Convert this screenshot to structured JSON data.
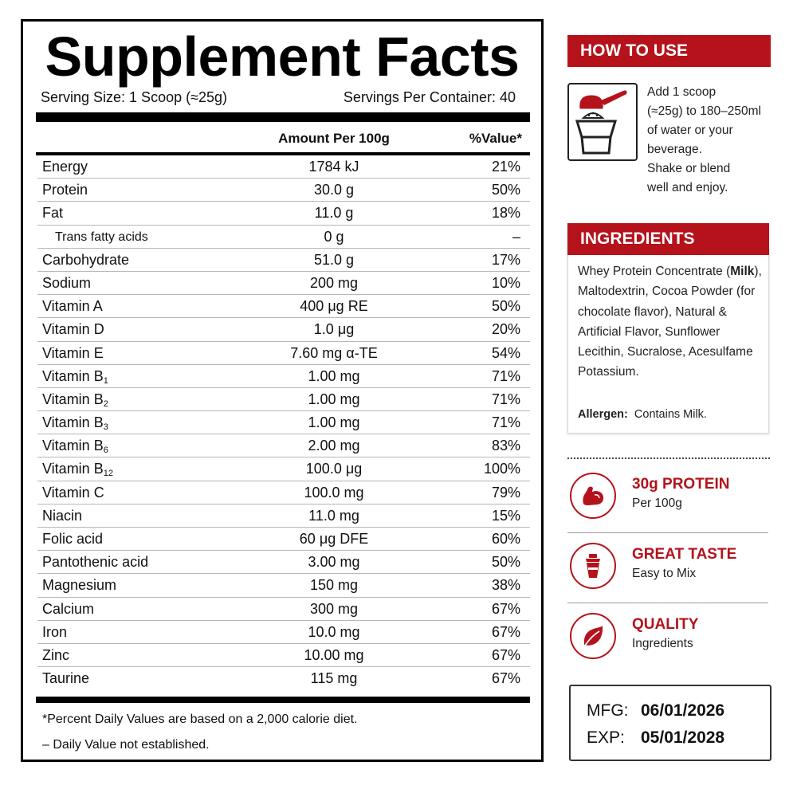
{
  "facts": {
    "title": "Supplement Facts",
    "serving_size": "Serving Size: 1 Scoop (≈25g)",
    "servings_per_container": "Servings Per Container: 40",
    "col_amount": "Amount Per 100g",
    "col_value": "%Value*",
    "rows": [
      {
        "name": "Energy",
        "amount": "1784 kJ",
        "value": "21%"
      },
      {
        "name": "Protein",
        "amount": "30.0 g",
        "value": "50%"
      },
      {
        "name": "Fat",
        "amount": "11.0 g",
        "value": "18%"
      },
      {
        "name": "Trans fatty acids",
        "amount": "0 g",
        "value": "–"
      },
      {
        "name": "Carbohydrate",
        "amount": "51.0 g",
        "value": "17%"
      },
      {
        "name": "Sodium",
        "amount": "200 mg",
        "value": "10%"
      },
      {
        "name": "Vitamin A",
        "amount": "400 μg RE",
        "value": "50%"
      },
      {
        "name": "Vitamin D",
        "amount": "1.0 μg",
        "value": "20%"
      },
      {
        "name": "Vitamin E",
        "amount": "7.60 mg α-TE",
        "value": "54%"
      },
      {
        "name": "Vitamin B",
        "sub": "1",
        "amount": "1.00 mg",
        "value": "71%"
      },
      {
        "name": "Vitamin B",
        "sub": "2",
        "amount": "1.00 mg",
        "value": "71%"
      },
      {
        "name": "Vitamin B",
        "sub": "3",
        "amount": "1.00 mg",
        "value": "71%"
      },
      {
        "name": "Vitamin B",
        "sub": "6",
        "amount": "2.00 mg",
        "value": "83%"
      },
      {
        "name": "Vitamin B",
        "sub": "12",
        "amount": "100.0 μg",
        "value": "100%"
      },
      {
        "name": "Vitamin C",
        "amount": "100.0 mg",
        "value": "79%"
      },
      {
        "name": "Niacin",
        "amount": "11.0 mg",
        "value": "15%"
      },
      {
        "name": "Folic acid",
        "amount": "60 μg DFE",
        "value": "60%"
      },
      {
        "name": "Pantothenic acid",
        "amount": "3.00 mg",
        "value": "50%"
      },
      {
        "name": "Magnesium",
        "amount": "150 mg",
        "value": "38%"
      },
      {
        "name": "Calcium",
        "amount": "300 mg",
        "value": "67%"
      },
      {
        "name": "Iron",
        "amount": "10.0 mg",
        "value": "67%"
      },
      {
        "name": "Zinc",
        "amount": "10.00 mg",
        "value": "67%"
      },
      {
        "name": "Taurine",
        "amount": "115 mg",
        "value": "67%"
      }
    ],
    "footnote1": "*Percent Daily Values are based on a 2,000 calorie diet.",
    "footnote2": "– Daily Value not established."
  },
  "how_to_use": {
    "title": "HOW TO USE",
    "icon": "scoop-shaker-icon",
    "lines": [
      "Add 1 scoop",
      "(≈25g) to 180–250ml",
      "of water or your",
      "beverage.",
      "Shake or blend",
      "well and enjoy."
    ]
  },
  "ingredients": {
    "title": "INGREDIENTS",
    "before_bold": "Whey Protein Concentrate (",
    "bold": "Milk",
    "after_bold": "), Maltodextrin, Cocoa Powder (for chocolate flavor), Natural & Artificial Flavor, Sunflower Lecithin, Sucralose, Acesulfame Potassium.",
    "allergen_label": "Allergen:",
    "allergen_text": "Contains Milk."
  },
  "features": [
    {
      "title": "30g PROTEIN",
      "subtitle": "Per 100g",
      "icon": "flexed-arm-icon"
    },
    {
      "title": "GREAT TASTE",
      "subtitle": "Easy to Mix",
      "icon": "shaker-cup-icon"
    },
    {
      "title": "QUALITY",
      "subtitle": "Ingredients",
      "icon": "leaf-icon"
    }
  ],
  "dates": {
    "mfg_label": "MFG:",
    "mfg_value": "06/01/2026",
    "exp_label": "EXP:",
    "exp_value": "05/01/2028"
  },
  "colors": {
    "accent_red": "#b5121b",
    "text_black": "#000000"
  }
}
